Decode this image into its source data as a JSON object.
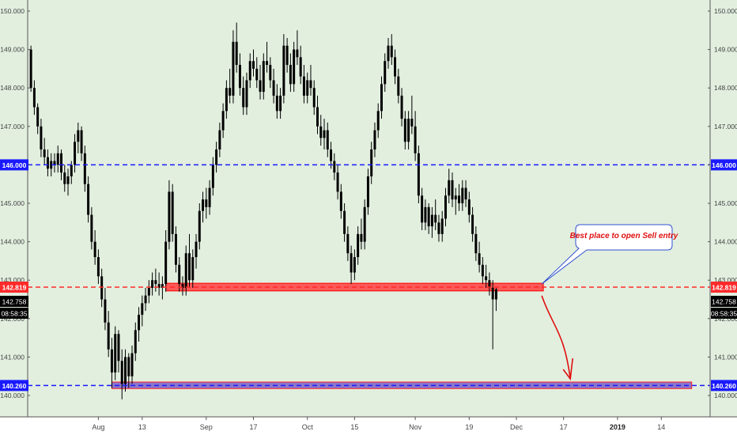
{
  "chart_data": {
    "type": "candlestick",
    "y_ticks": [
      "140.000",
      "141.000",
      "142.000",
      "143.000",
      "144.000",
      "145.000",
      "146.000",
      "147.000",
      "148.000",
      "149.000",
      "150.000"
    ],
    "ylim": [
      139.65,
      150.2
    ],
    "x_ticks": [
      {
        "label": "Aug",
        "t": 20
      },
      {
        "label": "13",
        "t": 33
      },
      {
        "label": "Sep",
        "t": 52
      },
      {
        "label": "17",
        "t": 66
      },
      {
        "label": "Oct",
        "t": 82
      },
      {
        "label": "15",
        "t": 96
      },
      {
        "label": "Nov",
        "t": 114
      },
      {
        "label": "19",
        "t": 130
      },
      {
        "label": "Dec",
        "t": 144
      },
      {
        "label": "17",
        "t": 158
      },
      {
        "label": "2019",
        "t": 174,
        "bold": true
      },
      {
        "label": "14",
        "t": 187
      }
    ],
    "xlim": [
      -0.5,
      201
    ],
    "levels": [
      {
        "value": 146.0,
        "label": "146.000",
        "color": "#1a1aff",
        "style": "dashed"
      },
      {
        "value": 142.819,
        "label": "142.819",
        "color": "#ff2a2a",
        "style": "dashed"
      },
      {
        "value": 140.26,
        "label": "140.260",
        "color": "#1a1aff",
        "style": "dashed"
      }
    ],
    "price_labels": [
      {
        "value": 142.758,
        "label": "142.758",
        "bg": "#000000"
      },
      {
        "label": "08:58:35",
        "bg": "#000000",
        "below": "142.758"
      }
    ],
    "zones": [
      {
        "from_t": 40,
        "to_t": 152,
        "y_low": 142.72,
        "y_high": 142.92,
        "fill": "#ff4040",
        "stroke": "#ff0000"
      },
      {
        "from_t": 24,
        "to_t": 196,
        "y_low": 140.18,
        "y_high": 140.35,
        "fill": "#7d60c8",
        "stroke": "#ff2020"
      }
    ],
    "annotation": {
      "text": "Best place to open Sell entry",
      "color": "#e01010",
      "border": "#3050d0"
    },
    "arrow_color": "#e01010",
    "candles": [
      [
        149.0,
        149.1,
        147.9,
        148.0
      ],
      [
        148.0,
        148.2,
        147.3,
        147.5
      ],
      [
        147.5,
        147.6,
        146.8,
        147.0
      ],
      [
        147.0,
        147.2,
        146.2,
        146.4
      ],
      [
        146.4,
        146.7,
        146.0,
        146.2
      ],
      [
        146.2,
        146.4,
        145.7,
        145.9
      ],
      [
        145.9,
        146.3,
        145.7,
        146.1
      ],
      [
        146.1,
        146.3,
        145.8,
        146.0
      ],
      [
        146.0,
        146.5,
        145.8,
        146.3
      ],
      [
        146.3,
        146.4,
        145.6,
        145.8
      ],
      [
        145.8,
        146.0,
        145.3,
        145.5
      ],
      [
        145.5,
        145.9,
        145.2,
        145.7
      ],
      [
        145.7,
        146.1,
        145.5,
        146.0
      ],
      [
        146.0,
        146.8,
        145.8,
        146.6
      ],
      [
        146.6,
        147.1,
        146.3,
        146.9
      ],
      [
        146.9,
        147.0,
        146.1,
        146.3
      ],
      [
        146.3,
        146.5,
        145.3,
        145.5
      ],
      [
        145.5,
        145.7,
        144.5,
        144.7
      ],
      [
        144.7,
        144.9,
        143.8,
        144.0
      ],
      [
        144.0,
        144.3,
        143.4,
        143.6
      ],
      [
        143.6,
        143.8,
        142.9,
        143.1
      ],
      [
        143.1,
        143.3,
        142.3,
        142.5
      ],
      [
        142.5,
        142.8,
        141.7,
        141.9
      ],
      [
        141.9,
        142.2,
        141.0,
        141.2
      ],
      [
        141.2,
        141.5,
        140.2,
        140.6
      ],
      [
        140.6,
        141.8,
        140.4,
        141.6
      ],
      [
        141.6,
        141.7,
        140.6,
        140.9
      ],
      [
        140.9,
        141.2,
        139.9,
        140.3
      ],
      [
        140.3,
        141.2,
        140.1,
        141.0
      ],
      [
        141.0,
        141.1,
        140.2,
        140.5
      ],
      [
        140.5,
        141.3,
        140.3,
        141.1
      ],
      [
        141.1,
        141.9,
        140.9,
        141.7
      ],
      [
        141.7,
        142.3,
        141.4,
        142.1
      ],
      [
        142.1,
        142.6,
        141.8,
        142.4
      ],
      [
        142.4,
        142.8,
        142.2,
        142.6
      ],
      [
        142.6,
        143.0,
        142.4,
        142.8
      ],
      [
        142.8,
        143.2,
        142.6,
        143.0
      ],
      [
        143.0,
        143.3,
        142.7,
        142.9
      ],
      [
        142.9,
        143.2,
        142.6,
        142.8
      ],
      [
        142.8,
        143.1,
        142.5,
        142.9
      ],
      [
        142.9,
        144.3,
        142.7,
        144.0
      ],
      [
        144.0,
        145.6,
        143.8,
        145.3
      ],
      [
        145.3,
        145.5,
        144.0,
        144.2
      ],
      [
        144.2,
        144.4,
        143.2,
        143.4
      ],
      [
        143.4,
        143.6,
        142.7,
        142.9
      ],
      [
        142.9,
        143.1,
        142.6,
        142.8
      ],
      [
        142.8,
        143.9,
        142.6,
        143.7
      ],
      [
        143.7,
        144.2,
        142.8,
        143.0
      ],
      [
        143.0,
        143.8,
        142.8,
        143.6
      ],
      [
        143.6,
        144.2,
        143.3,
        144.0
      ],
      [
        144.0,
        145.0,
        143.8,
        144.8
      ],
      [
        144.8,
        145.3,
        144.5,
        145.1
      ],
      [
        145.1,
        145.4,
        144.6,
        144.9
      ],
      [
        144.9,
        145.6,
        144.7,
        145.4
      ],
      [
        145.4,
        146.2,
        145.2,
        146.0
      ],
      [
        146.0,
        146.6,
        145.8,
        146.4
      ],
      [
        146.4,
        147.1,
        146.2,
        146.9
      ],
      [
        146.9,
        147.6,
        146.7,
        147.4
      ],
      [
        147.4,
        148.2,
        147.2,
        148.0
      ],
      [
        148.0,
        148.5,
        147.6,
        147.8
      ],
      [
        147.8,
        149.5,
        147.6,
        149.2
      ],
      [
        149.2,
        149.7,
        148.4,
        148.6
      ],
      [
        148.6,
        148.9,
        147.8,
        148.0
      ],
      [
        148.0,
        148.3,
        147.3,
        147.5
      ],
      [
        147.5,
        148.4,
        147.3,
        148.2
      ],
      [
        148.2,
        148.9,
        148.0,
        148.7
      ],
      [
        148.7,
        149.0,
        148.3,
        148.5
      ],
      [
        148.5,
        148.8,
        148.0,
        148.2
      ],
      [
        148.2,
        148.6,
        147.7,
        147.9
      ],
      [
        147.9,
        148.9,
        147.7,
        148.7
      ],
      [
        148.7,
        149.2,
        148.4,
        148.6
      ],
      [
        148.6,
        148.8,
        148.0,
        148.2
      ],
      [
        148.2,
        148.5,
        147.6,
        147.8
      ],
      [
        147.8,
        148.1,
        147.2,
        147.4
      ],
      [
        147.4,
        148.0,
        147.2,
        147.8
      ],
      [
        147.8,
        149.4,
        147.6,
        149.1
      ],
      [
        149.1,
        149.3,
        148.4,
        148.6
      ],
      [
        148.6,
        148.9,
        147.9,
        148.1
      ],
      [
        148.1,
        149.2,
        147.9,
        149.0
      ],
      [
        149.0,
        149.5,
        148.6,
        148.8
      ],
      [
        148.8,
        149.1,
        148.1,
        148.3
      ],
      [
        148.3,
        148.6,
        147.6,
        147.8
      ],
      [
        147.8,
        148.4,
        147.6,
        148.2
      ],
      [
        148.2,
        148.6,
        147.8,
        148.0
      ],
      [
        148.0,
        148.2,
        147.3,
        147.5
      ],
      [
        147.5,
        147.8,
        146.8,
        147.0
      ],
      [
        147.0,
        147.3,
        146.5,
        146.7
      ],
      [
        146.7,
        147.2,
        146.4,
        146.9
      ],
      [
        146.9,
        147.1,
        146.2,
        146.4
      ],
      [
        146.4,
        146.6,
        145.9,
        146.1
      ],
      [
        146.1,
        146.3,
        145.6,
        145.8
      ],
      [
        145.8,
        146.0,
        145.1,
        145.3
      ],
      [
        145.3,
        145.5,
        144.6,
        144.8
      ],
      [
        144.8,
        145.0,
        144.0,
        144.2
      ],
      [
        144.2,
        144.4,
        143.5,
        143.7
      ],
      [
        143.7,
        143.9,
        142.9,
        143.2
      ],
      [
        143.2,
        143.8,
        143.0,
        143.6
      ],
      [
        143.6,
        144.4,
        143.4,
        144.2
      ],
      [
        144.2,
        144.6,
        143.8,
        144.0
      ],
      [
        144.0,
        145.1,
        143.8,
        144.9
      ],
      [
        144.9,
        145.9,
        144.7,
        145.7
      ],
      [
        145.7,
        146.6,
        145.5,
        146.4
      ],
      [
        146.4,
        147.1,
        146.2,
        146.9
      ],
      [
        146.9,
        147.6,
        146.7,
        147.4
      ],
      [
        147.4,
        148.3,
        147.2,
        148.1
      ],
      [
        148.1,
        148.9,
        147.9,
        148.7
      ],
      [
        148.7,
        149.3,
        148.5,
        149.1
      ],
      [
        149.1,
        149.4,
        148.6,
        148.8
      ],
      [
        148.8,
        149.0,
        148.1,
        148.3
      ],
      [
        148.3,
        148.5,
        147.6,
        147.8
      ],
      [
        147.8,
        148.0,
        147.0,
        147.2
      ],
      [
        147.2,
        147.4,
        146.4,
        146.6
      ],
      [
        146.6,
        147.4,
        146.4,
        147.2
      ],
      [
        147.2,
        147.8,
        146.8,
        147.0
      ],
      [
        147.0,
        147.4,
        146.1,
        146.3
      ],
      [
        146.3,
        146.5,
        145.0,
        145.2
      ],
      [
        145.2,
        145.4,
        144.3,
        144.5
      ],
      [
        144.5,
        145.1,
        144.3,
        144.9
      ],
      [
        144.9,
        145.0,
        144.2,
        144.4
      ],
      [
        144.4,
        144.9,
        144.1,
        144.7
      ],
      [
        144.7,
        145.1,
        144.3,
        144.5
      ],
      [
        144.5,
        144.7,
        144.0,
        144.2
      ],
      [
        144.2,
        144.8,
        144.0,
        144.6
      ],
      [
        144.6,
        145.4,
        144.4,
        145.2
      ],
      [
        145.2,
        145.9,
        145.0,
        145.6
      ],
      [
        145.6,
        145.8,
        144.9,
        145.1
      ],
      [
        145.1,
        145.4,
        144.7,
        145.2
      ],
      [
        145.2,
        145.5,
        144.8,
        145.0
      ],
      [
        145.0,
        145.6,
        144.8,
        145.4
      ],
      [
        145.4,
        145.6,
        144.9,
        145.1
      ],
      [
        145.1,
        145.3,
        144.5,
        144.7
      ],
      [
        144.7,
        144.9,
        144.0,
        144.2
      ],
      [
        144.2,
        144.4,
        143.5,
        143.7
      ],
      [
        143.7,
        144.0,
        143.2,
        143.4
      ],
      [
        143.4,
        143.6,
        142.9,
        143.1
      ],
      [
        143.1,
        143.4,
        142.8,
        143.0
      ],
      [
        143.0,
        143.2,
        142.6,
        142.8
      ],
      [
        142.8,
        143.0,
        141.2,
        142.5
      ],
      [
        142.5,
        142.8,
        142.2,
        142.76
      ]
    ]
  }
}
